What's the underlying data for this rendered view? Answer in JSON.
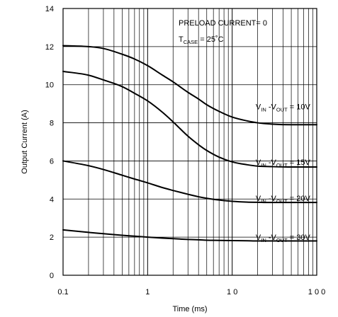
{
  "chart_data": {
    "type": "line",
    "title": "",
    "xlabel": "Time (ms)",
    "ylabel": "Output Current (A)",
    "x_scale": "log",
    "xlim": [
      0.1,
      100
    ],
    "ylim": [
      0,
      14
    ],
    "x_ticks": [
      {
        "value": 0.1,
        "label": "0.1"
      },
      {
        "value": 1,
        "label": "1"
      },
      {
        "value": 10,
        "label": "1 0"
      },
      {
        "value": 100,
        "label": "1 0 0"
      }
    ],
    "y_ticks": [
      {
        "value": 0,
        "label": "0"
      },
      {
        "value": 2,
        "label": "2"
      },
      {
        "value": 4,
        "label": "4"
      },
      {
        "value": 6,
        "label": "6"
      },
      {
        "value": 8,
        "label": "8"
      },
      {
        "value": 10,
        "label": "10"
      },
      {
        "value": 12,
        "label": "12"
      },
      {
        "value": 14,
        "label": "14"
      }
    ],
    "grid": true,
    "annotations": {
      "line1": "PRELOAD CURRENT= 0",
      "line2_main": "T",
      "line2_sub": "CASE",
      "line2_rest": "= 25˚C"
    },
    "series": [
      {
        "label_parts": [
          "V",
          "IN",
          " -V",
          "OUT",
          " = 10V"
        ],
        "label_anchor": {
          "x": 19,
          "y": 8.7
        },
        "x": [
          0.1,
          0.2,
          0.3,
          0.5,
          0.7,
          1,
          1.5,
          2,
          3,
          4,
          5,
          7,
          10,
          15,
          20,
          30,
          50,
          70,
          100
        ],
        "y": [
          12.05,
          12.0,
          11.9,
          11.6,
          11.35,
          11.0,
          10.5,
          10.15,
          9.6,
          9.25,
          8.95,
          8.6,
          8.3,
          8.1,
          8.0,
          7.93,
          7.9,
          7.9,
          7.9
        ]
      },
      {
        "label_parts": [
          "V",
          "IN",
          " -V",
          "OUT",
          " = 15V"
        ],
        "label_anchor": {
          "x": 19,
          "y": 5.8
        },
        "x": [
          0.1,
          0.2,
          0.3,
          0.5,
          0.7,
          1,
          1.5,
          2,
          3,
          4,
          5,
          7,
          10,
          15,
          20,
          30,
          50,
          70,
          100
        ],
        "y": [
          10.7,
          10.5,
          10.25,
          9.9,
          9.55,
          9.15,
          8.55,
          8.05,
          7.3,
          6.85,
          6.55,
          6.2,
          5.95,
          5.8,
          5.73,
          5.7,
          5.68,
          5.68,
          5.68
        ]
      },
      {
        "label_parts": [
          "V",
          "IN",
          " -V",
          "OUT",
          " = 20V"
        ],
        "label_anchor": {
          "x": 19,
          "y": 3.9
        },
        "x": [
          0.1,
          0.2,
          0.3,
          0.5,
          0.7,
          1,
          1.5,
          2,
          3,
          4,
          5,
          7,
          10,
          15,
          20,
          30,
          50,
          70,
          100
        ],
        "y": [
          6.0,
          5.75,
          5.55,
          5.25,
          5.05,
          4.85,
          4.6,
          4.45,
          4.25,
          4.12,
          4.04,
          3.95,
          3.88,
          3.84,
          3.83,
          3.82,
          3.82,
          3.82,
          3.82
        ]
      },
      {
        "label_parts": [
          "V",
          "IN",
          " -V",
          "OUT",
          " = 30V"
        ],
        "label_anchor": {
          "x": 19,
          "y": 1.85
        },
        "x": [
          0.1,
          0.2,
          0.3,
          0.5,
          0.7,
          1,
          1.5,
          2,
          3,
          4,
          5,
          7,
          10,
          15,
          20,
          30,
          50,
          70,
          100
        ],
        "y": [
          2.38,
          2.25,
          2.18,
          2.1,
          2.05,
          2.0,
          1.95,
          1.92,
          1.88,
          1.86,
          1.84,
          1.83,
          1.82,
          1.81,
          1.8,
          1.8,
          1.8,
          1.8,
          1.8
        ]
      }
    ]
  }
}
